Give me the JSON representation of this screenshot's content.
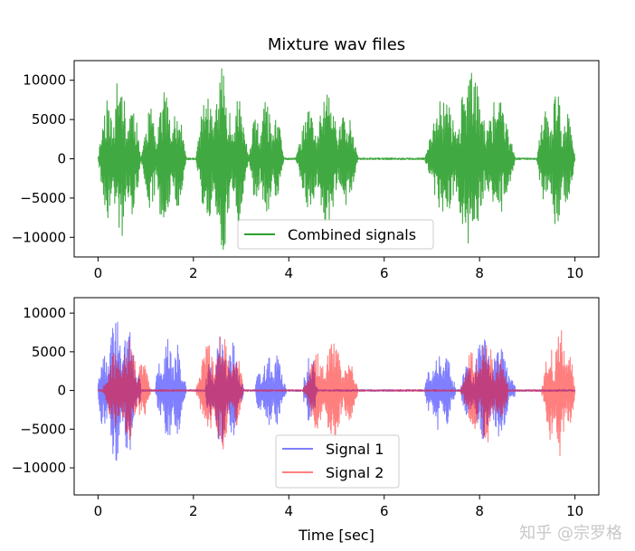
{
  "chart_data": [
    {
      "type": "line",
      "title": "Mixture wav files",
      "xlabel": "",
      "ylabel": "",
      "xlim": [
        -0.5,
        10.5
      ],
      "ylim": [
        -12500,
        12500
      ],
      "xticks": [
        0,
        2,
        4,
        6,
        8,
        10
      ],
      "yticks": [
        -10000,
        -5000,
        0,
        5000,
        10000
      ],
      "legend_position": "lower center",
      "series": [
        {
          "name": "Combined signals",
          "color": "#2ca02c",
          "segments": [
            {
              "start": 0.0,
              "end": 0.9,
              "peak": 11000
            },
            {
              "start": 0.9,
              "end": 1.85,
              "peak": 9000
            },
            {
              "start": 2.05,
              "end": 3.15,
              "peak": 12000
            },
            {
              "start": 3.15,
              "end": 3.9,
              "peak": 7500
            },
            {
              "start": 4.15,
              "end": 5.45,
              "peak": 9000
            },
            {
              "start": 6.85,
              "end": 8.75,
              "peak": 11000
            },
            {
              "start": 9.2,
              "end": 10.0,
              "peak": 9000
            }
          ]
        }
      ]
    },
    {
      "type": "line",
      "title": "",
      "xlabel": "Time [sec]",
      "ylabel": "",
      "xlim": [
        -0.5,
        10.5
      ],
      "ylim": [
        -13500,
        12000
      ],
      "xticks": [
        0,
        2,
        4,
        6,
        8,
        10
      ],
      "yticks": [
        -10000,
        -5000,
        0,
        5000,
        10000
      ],
      "legend_position": "lower center",
      "series": [
        {
          "name": "Signal 1",
          "color": "#0000ff",
          "segments": [
            {
              "start": 0.0,
              "end": 0.9,
              "peak": 10000
            },
            {
              "start": 1.2,
              "end": 1.85,
              "peak": 7000
            },
            {
              "start": 2.25,
              "end": 3.05,
              "peak": 7500
            },
            {
              "start": 3.3,
              "end": 3.95,
              "peak": 5500
            },
            {
              "start": 4.3,
              "end": 4.6,
              "peak": 4500
            },
            {
              "start": 6.85,
              "end": 7.5,
              "peak": 5500
            },
            {
              "start": 7.6,
              "end": 8.75,
              "peak": 7000
            }
          ]
        },
        {
          "name": "Signal 2",
          "color": "#ff0000",
          "segments": [
            {
              "start": 0.1,
              "end": 1.1,
              "peak": 6500
            },
            {
              "start": 2.05,
              "end": 3.05,
              "peak": 8000
            },
            {
              "start": 4.3,
              "end": 5.45,
              "peak": 6500
            },
            {
              "start": 7.6,
              "end": 8.6,
              "peak": 7000
            },
            {
              "start": 9.3,
              "end": 10.0,
              "peak": 8500
            }
          ]
        }
      ]
    }
  ],
  "watermark": "知乎 @宗罗格"
}
